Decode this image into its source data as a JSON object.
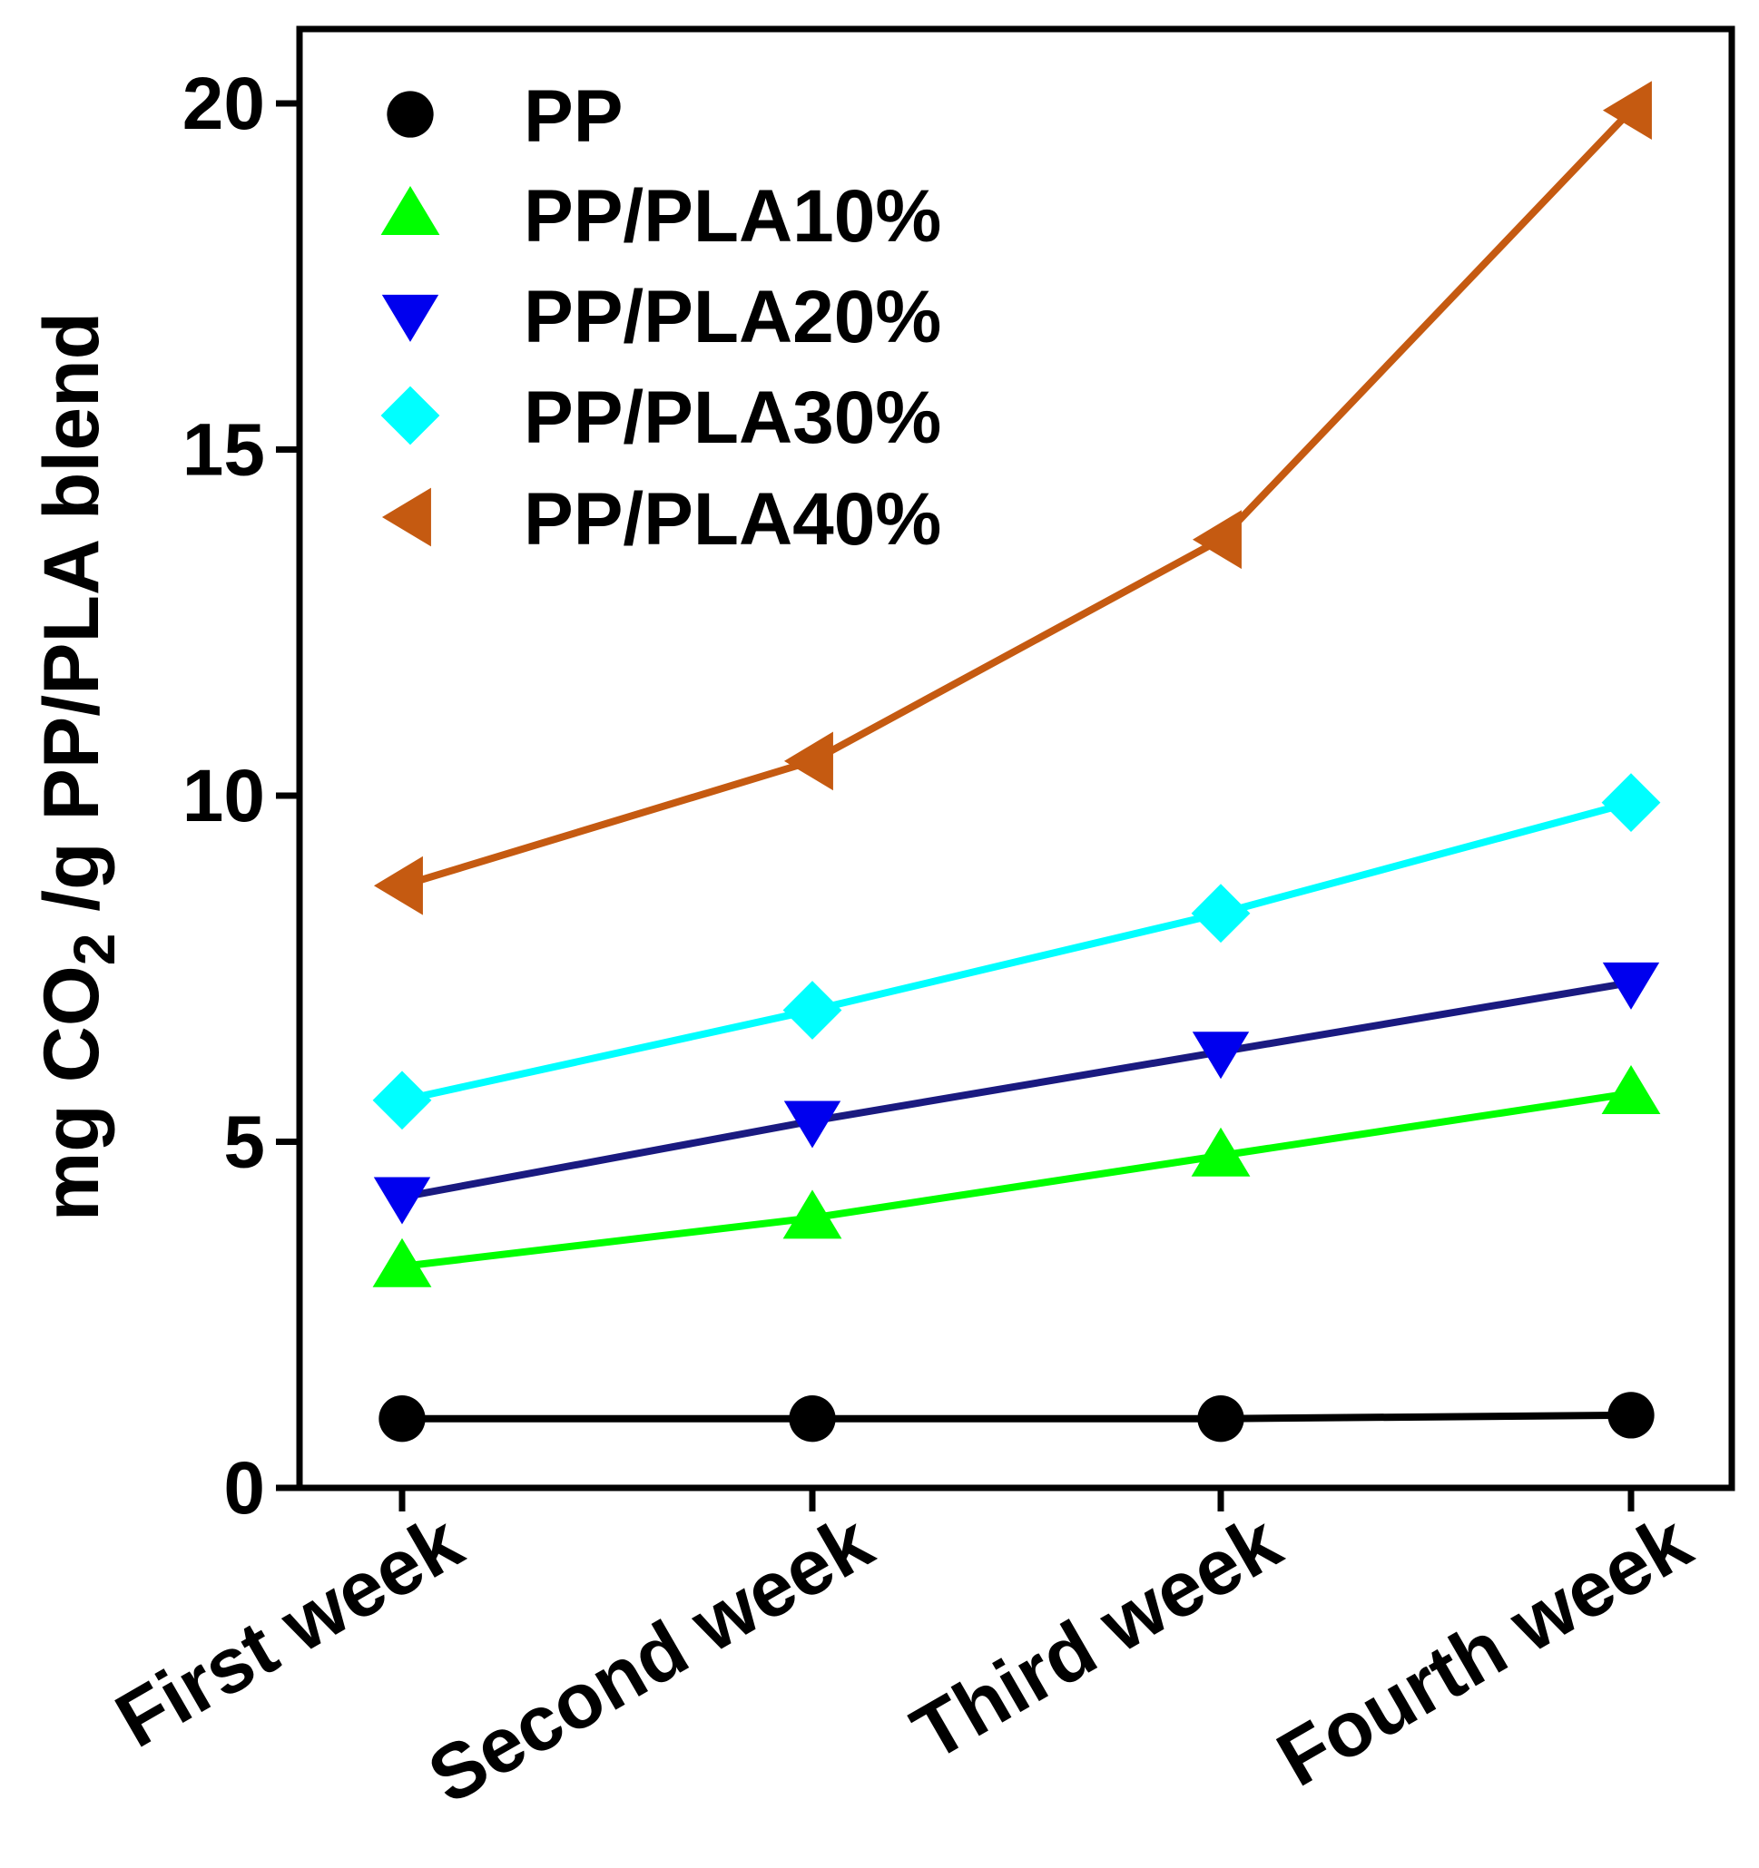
{
  "chart_data": {
    "type": "line",
    "title": "",
    "xlabel": "",
    "ylabel": {
      "prefix": "mg CO",
      "subscript": "2",
      "suffix": " /g PP/PLA blend"
    },
    "categories": [
      "First week",
      "Second week",
      "Third week",
      "Fourth week"
    ],
    "ylim": [
      0,
      21
    ],
    "yticks": [
      0,
      5,
      10,
      15,
      20
    ],
    "ytick_labels": [
      "0",
      "5",
      "10",
      "15",
      "20"
    ],
    "legend_position": "top-left",
    "series": [
      {
        "name": "PP",
        "marker": "circle",
        "color": "#000000",
        "values": [
          1.0,
          1.0,
          1.0,
          1.05
        ]
      },
      {
        "name": "PP/PLA10%",
        "marker": "triangle-up",
        "color": "#00ff00",
        "values": [
          3.2,
          3.9,
          4.8,
          5.7
        ]
      },
      {
        "name": "PP/PLA20%",
        "marker": "triangle-down",
        "color": "#0000ee",
        "line_color": "#1a1a80",
        "values": [
          4.2,
          5.3,
          6.3,
          7.3
        ]
      },
      {
        "name": "PP/PLA30%",
        "marker": "diamond",
        "color": "#00ffff",
        "values": [
          5.6,
          6.9,
          8.3,
          9.9
        ]
      },
      {
        "name": "PP/PLA40%",
        "marker": "triangle-left",
        "color": "#c55a11",
        "values": [
          8.7,
          10.5,
          13.7,
          19.9
        ]
      }
    ]
  }
}
